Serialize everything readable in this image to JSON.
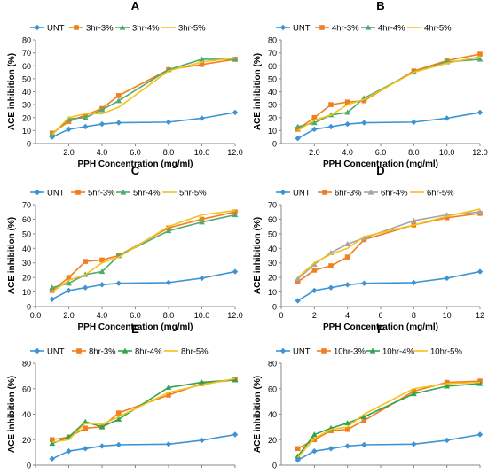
{
  "colors": {
    "UNT": "#3d94d4",
    "s3": "#f07f1f",
    "s4": "#4fac6e",
    "s5": "#f6c21a",
    "s4_gray": "#a5a5a5",
    "s4_green": "#2fa34f",
    "axis": "#878787"
  },
  "chart_data": [
    {
      "type": "line",
      "panel_label": "A",
      "xlabel": "PPH Concentration (mg/ml)",
      "ylabel": "ACE inhibition (%)",
      "xlim": [
        0,
        12
      ],
      "ylim": [
        0,
        80
      ],
      "x_ticks": [
        "2.0",
        "4.0",
        "6.0",
        "8.0",
        "10.0",
        "12.0"
      ],
      "y_ticks": [
        "0",
        "10",
        "20",
        "30",
        "40",
        "50",
        "60",
        "70",
        "80"
      ],
      "x": [
        1,
        2,
        3,
        4,
        5,
        8,
        10,
        12
      ],
      "series": [
        {
          "name": "UNT",
          "color_key": "UNT",
          "marker": "diamond",
          "values": [
            5,
            11,
            13,
            15,
            16,
            16.5,
            19.5,
            24
          ]
        },
        {
          "name": "3hr-3%",
          "color_key": "s3",
          "marker": "square",
          "values": [
            8,
            17,
            22,
            27,
            37,
            57,
            61,
            65
          ]
        },
        {
          "name": "3hr-4%",
          "color_key": "s4",
          "marker": "triangle",
          "values": [
            7,
            19,
            20,
            26,
            33,
            57,
            65,
            65
          ]
        },
        {
          "name": "3hr-5%",
          "color_key": "s5",
          "marker": "none",
          "values": [
            7,
            20,
            23,
            23,
            28,
            56,
            63,
            66
          ]
        }
      ]
    },
    {
      "type": "line",
      "panel_label": "B",
      "xlabel": "PPH Concentration (mg/ml)",
      "ylabel": "ACE inhibition (%)",
      "xlim": [
        0,
        12
      ],
      "ylim": [
        0,
        80
      ],
      "x_ticks": [
        "2.0",
        "4.0",
        "6.0",
        "8.0",
        "10.0",
        "12.0"
      ],
      "y_ticks": [
        "0",
        "10",
        "20",
        "30",
        "40",
        "50",
        "60",
        "70",
        "80"
      ],
      "x": [
        1,
        2,
        3,
        4,
        5,
        8,
        10,
        12
      ],
      "series": [
        {
          "name": "UNT",
          "color_key": "UNT",
          "marker": "diamond",
          "values": [
            4,
            11,
            13,
            15,
            16,
            16.5,
            19.5,
            24
          ]
        },
        {
          "name": "4hr-3%",
          "color_key": "s3",
          "marker": "square",
          "values": [
            11,
            20,
            30,
            32,
            33,
            56,
            64,
            69
          ]
        },
        {
          "name": "4hr-4%",
          "color_key": "s4",
          "marker": "triangle",
          "values": [
            13,
            16,
            22,
            24,
            35,
            55,
            63,
            65
          ]
        },
        {
          "name": "4hr-5%",
          "color_key": "s5",
          "marker": "none",
          "values": [
            10,
            18,
            22,
            30,
            34,
            55,
            62,
            67
          ]
        }
      ]
    },
    {
      "type": "line",
      "panel_label": "C",
      "xlabel": "PPH Concentration (mg/ml)",
      "ylabel": "ACE inhibition (%)",
      "xlim": [
        0,
        12
      ],
      "ylim": [
        0,
        70
      ],
      "x_ticks": [
        "0.0",
        "2.0",
        "4.0",
        "6.0",
        "8.0",
        "10.0",
        "12.0"
      ],
      "y_ticks": [
        "0",
        "10",
        "20",
        "30",
        "40",
        "50",
        "60",
        "70"
      ],
      "x": [
        1,
        2,
        3,
        4,
        5,
        8,
        10,
        12
      ],
      "series": [
        {
          "name": "UNT",
          "color_key": "UNT",
          "marker": "diamond",
          "values": [
            5,
            11,
            13,
            15,
            16,
            16.5,
            19.5,
            24
          ]
        },
        {
          "name": "5hr-3%",
          "color_key": "s3",
          "marker": "square",
          "values": [
            11,
            20,
            31,
            32,
            35,
            54,
            60,
            65
          ]
        },
        {
          "name": "5hr-4%",
          "color_key": "s4",
          "marker": "triangle",
          "values": [
            13,
            16,
            22,
            24,
            35,
            52,
            58,
            63
          ]
        },
        {
          "name": "5hr-5%",
          "color_key": "s5",
          "marker": "none",
          "values": [
            10,
            18,
            22,
            30,
            34,
            55,
            63,
            66
          ]
        }
      ]
    },
    {
      "type": "line",
      "panel_label": "D",
      "xlabel": "PPH Concentration (mg/ml)",
      "ylabel": "ACE inhibition (%)",
      "xlim": [
        0,
        12
      ],
      "ylim": [
        0,
        70
      ],
      "x_ticks": [
        "0",
        "2",
        "4",
        "6",
        "8",
        "10",
        "12"
      ],
      "y_ticks": [
        "0",
        "10",
        "20",
        "30",
        "40",
        "50",
        "60",
        "70"
      ],
      "x": [
        1,
        2,
        3,
        4,
        5,
        8,
        10,
        12
      ],
      "series": [
        {
          "name": "UNT",
          "color_key": "UNT",
          "marker": "diamond",
          "values": [
            4,
            11,
            13,
            15,
            16,
            16.5,
            19.5,
            24
          ]
        },
        {
          "name": "6hr-3%",
          "color_key": "s3",
          "marker": "square",
          "values": [
            17,
            25,
            28,
            34,
            46,
            56,
            61,
            64
          ]
        },
        {
          "name": "6hr-4%",
          "color_key": "s4_gray",
          "marker": "triangle",
          "values": [
            19,
            29,
            37,
            43,
            47,
            59,
            63,
            65
          ]
        },
        {
          "name": "6hr-5%",
          "color_key": "s5",
          "marker": "none",
          "values": [
            20,
            30,
            36,
            40,
            48,
            56,
            62,
            67
          ]
        }
      ]
    },
    {
      "type": "line",
      "panel_label": "E",
      "xlabel": "PPH Concentration (mg/ml)",
      "ylabel": "ACE inhibition (%)",
      "xlim": [
        0,
        12
      ],
      "ylim": [
        0,
        80
      ],
      "x_ticks": [
        "0.0",
        "2.0",
        "4.0",
        "6.0",
        "8.0",
        "10.0",
        "12.0"
      ],
      "y_ticks": [
        "0",
        "20",
        "40",
        "60",
        "80"
      ],
      "x": [
        1,
        2,
        3,
        4,
        5,
        8,
        10,
        12
      ],
      "series": [
        {
          "name": "UNT",
          "color_key": "UNT",
          "marker": "diamond",
          "values": [
            5,
            11,
            13,
            15,
            16,
            16.5,
            19.5,
            24
          ]
        },
        {
          "name": "8hr-3%",
          "color_key": "s3",
          "marker": "square",
          "values": [
            20,
            22,
            29,
            30,
            41,
            55,
            64,
            67
          ]
        },
        {
          "name": "8hr-4%",
          "color_key": "s4_green",
          "marker": "triangle",
          "values": [
            17,
            22,
            34,
            30,
            36,
            61,
            65,
            67
          ]
        },
        {
          "name": "8hr-5%",
          "color_key": "s5",
          "marker": "none",
          "values": [
            18,
            20,
            33,
            32,
            38,
            57,
            63,
            68
          ]
        }
      ]
    },
    {
      "type": "line",
      "panel_label": "F",
      "xlabel": "PPH Concentration (mg/ml)",
      "ylabel": "ACE inhibition (%)",
      "xlim": [
        0,
        12
      ],
      "ylim": [
        0,
        80
      ],
      "x_ticks": [
        "2.0",
        "4.0",
        "6.0",
        "8.0",
        "10.0",
        "12.0"
      ],
      "y_ticks": [
        "0",
        "20",
        "40",
        "60",
        "80"
      ],
      "x": [
        1,
        2,
        3,
        4,
        5,
        8,
        10,
        12
      ],
      "series": [
        {
          "name": "UNT",
          "color_key": "UNT",
          "marker": "diamond",
          "values": [
            4,
            11,
            13,
            15,
            16,
            16.5,
            19.5,
            24
          ]
        },
        {
          "name": "10hr-3%",
          "color_key": "s3",
          "marker": "square",
          "values": [
            13,
            20,
            27,
            28,
            35,
            58,
            65,
            66
          ]
        },
        {
          "name": "10hr-4%",
          "color_key": "s4_green",
          "marker": "triangle",
          "values": [
            7,
            24,
            29,
            33,
            38,
            56,
            62,
            64
          ]
        },
        {
          "name": "10hr-5%",
          "color_key": "s5",
          "marker": "none",
          "values": [
            6,
            21,
            28,
            30,
            40,
            60,
            64,
            65
          ]
        }
      ]
    }
  ]
}
